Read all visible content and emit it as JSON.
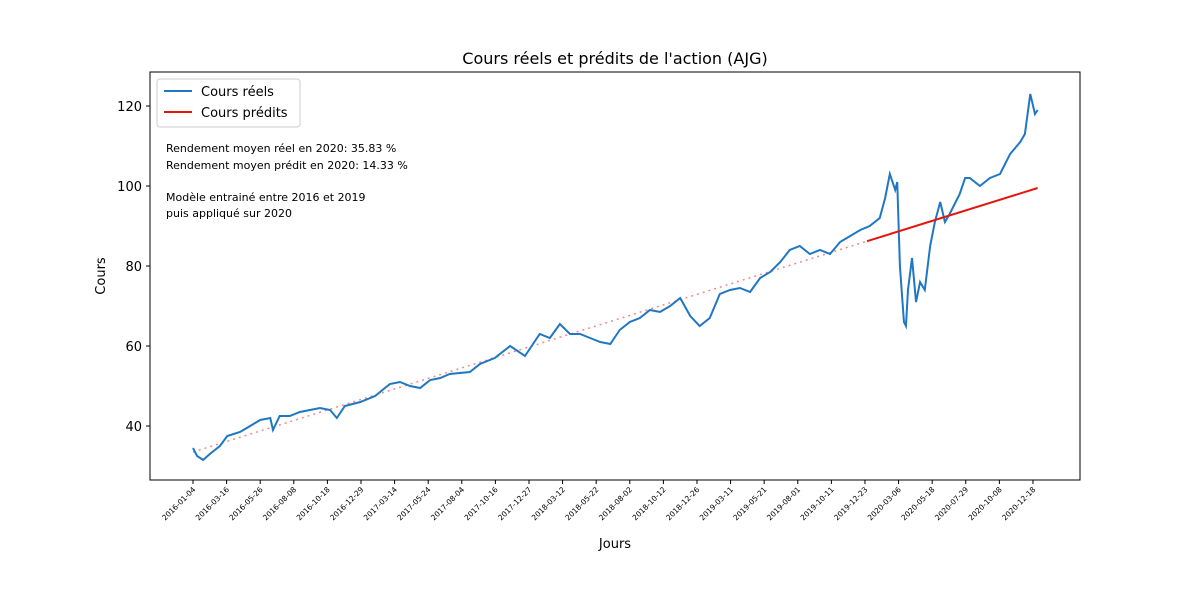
{
  "chart_data": {
    "type": "line",
    "title": "Cours réels et prédits de l'action (AJG)",
    "x_label": "Jours",
    "y_label": "Cours",
    "xlim": [
      -64,
      1320
    ],
    "ylim": [
      26.5,
      128.5
    ],
    "yticks": [
      40,
      60,
      80,
      100,
      120
    ],
    "xticks": [
      {
        "value": 0,
        "label": "2016-01-04"
      },
      {
        "value": 50,
        "label": "2016-03-16"
      },
      {
        "value": 100,
        "label": "2016-05-26"
      },
      {
        "value": 150,
        "label": "2016-08-08"
      },
      {
        "value": 200,
        "label": "2016-10-18"
      },
      {
        "value": 250,
        "label": "2016-12-29"
      },
      {
        "value": 300,
        "label": "2017-03-14"
      },
      {
        "value": 350,
        "label": "2017-05-24"
      },
      {
        "value": 400,
        "label": "2017-08-04"
      },
      {
        "value": 450,
        "label": "2017-10-16"
      },
      {
        "value": 500,
        "label": "2017-12-27"
      },
      {
        "value": 550,
        "label": "2018-03-12"
      },
      {
        "value": 600,
        "label": "2018-05-22"
      },
      {
        "value": 650,
        "label": "2018-08-02"
      },
      {
        "value": 700,
        "label": "2018-10-12"
      },
      {
        "value": 750,
        "label": "2018-12-26"
      },
      {
        "value": 800,
        "label": "2019-03-11"
      },
      {
        "value": 850,
        "label": "2019-05-21"
      },
      {
        "value": 900,
        "label": "2019-08-01"
      },
      {
        "value": 950,
        "label": "2019-10-11"
      },
      {
        "value": 1000,
        "label": "2019-12-23"
      },
      {
        "value": 1050,
        "label": "2020-03-06"
      },
      {
        "value": 1100,
        "label": "2020-05-18"
      },
      {
        "value": 1150,
        "label": "2020-07-29"
      },
      {
        "value": 1200,
        "label": "2020-10-08"
      },
      {
        "value": 1250,
        "label": "2020-12-18"
      }
    ],
    "legend": "upper left",
    "series": [
      {
        "name": "Cours réels",
        "color": "#1f77c4",
        "x": [
          0,
          6,
          15,
          25,
          40,
          51,
          70,
          85,
          100,
          115,
          119,
          129,
          144,
          159,
          174,
          189,
          204,
          214,
          226,
          249,
          271,
          293,
          308,
          323,
          338,
          353,
          368,
          382,
          412,
          427,
          449,
          472,
          494,
          516,
          531,
          546,
          561,
          576,
          591,
          606,
          621,
          635,
          650,
          665,
          680,
          695,
          710,
          725,
          740,
          754,
          769,
          784,
          799,
          814,
          829,
          844,
          859,
          874,
          888,
          903,
          918,
          933,
          948,
          963,
          978,
          993,
          1007,
          1022,
          1030,
          1037,
          1045,
          1048,
          1052,
          1058,
          1061,
          1064,
          1070,
          1076,
          1082,
          1089,
          1097,
          1104,
          1112,
          1119,
          1126,
          1141,
          1149,
          1156,
          1171,
          1186,
          1201,
          1216,
          1231,
          1238,
          1246,
          1253,
          1257
        ],
        "values": [
          34.5,
          32.5,
          31.5,
          33,
          35,
          37.5,
          38.5,
          40,
          41.5,
          42,
          39,
          42.5,
          42.5,
          43.5,
          44,
          44.5,
          44,
          42,
          45,
          46,
          47.5,
          50.5,
          51,
          50,
          49.5,
          51.5,
          52,
          53,
          53.5,
          55.5,
          57,
          60,
          57.5,
          63,
          62,
          65.5,
          63,
          63,
          62,
          61,
          60.5,
          64,
          66,
          67,
          69,
          68.5,
          70,
          72,
          67.5,
          65,
          67,
          73,
          74,
          74.5,
          73.5,
          77,
          78.5,
          81,
          84,
          85,
          83,
          84,
          83,
          86,
          87.5,
          89,
          90,
          92,
          97,
          103,
          99,
          101,
          80,
          66,
          65,
          74,
          82,
          71,
          76,
          74,
          85,
          91,
          96,
          91,
          93,
          98,
          102,
          102,
          100,
          102,
          103,
          108,
          111,
          113,
          123,
          118,
          119
        ]
      },
      {
        "name": "Cours prédits",
        "color": "#e8150e",
        "x": [
          1003,
          1257
        ],
        "values": [
          86.2,
          99.5
        ]
      }
    ],
    "trend": {
      "color": "#f08a8a",
      "x": [
        0,
        1003
      ],
      "values": [
        33.5,
        86.2
      ]
    },
    "annotations": [
      "Rendement moyen réel en 2020: 35.83 %",
      "Rendement moyen prédit en 2020: 14.33 %",
      "Modèle entrainé entre 2016 et 2019",
      "puis appliqué sur 2020"
    ]
  }
}
